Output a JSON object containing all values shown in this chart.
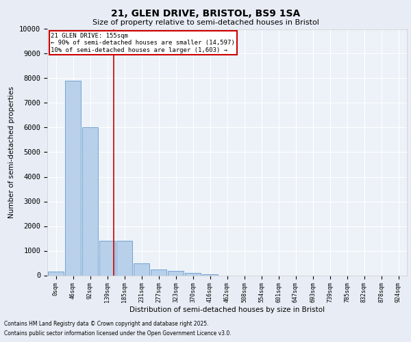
{
  "title_line1": "21, GLEN DRIVE, BRISTOL, BS9 1SA",
  "title_line2": "Size of property relative to semi-detached houses in Bristol",
  "xlabel": "Distribution of semi-detached houses by size in Bristol",
  "ylabel": "Number of semi-detached properties",
  "bar_labels": [
    "0sqm",
    "46sqm",
    "92sqm",
    "139sqm",
    "185sqm",
    "231sqm",
    "277sqm",
    "323sqm",
    "370sqm",
    "416sqm",
    "462sqm",
    "508sqm",
    "554sqm",
    "601sqm",
    "647sqm",
    "693sqm",
    "739sqm",
    "785sqm",
    "832sqm",
    "878sqm",
    "924sqm"
  ],
  "bar_values": [
    150,
    7900,
    6000,
    1400,
    1400,
    500,
    250,
    170,
    100,
    40,
    0,
    0,
    0,
    0,
    0,
    0,
    0,
    0,
    0,
    0,
    0
  ],
  "bar_color": "#b8d0ea",
  "bar_edge_color": "#6699cc",
  "vline_color": "#cc0000",
  "annotation_box_color": "#ffffff",
  "annotation_box_edge": "#cc0000",
  "property_line_label": "21 GLEN DRIVE: 155sqm",
  "annotation_smaller": "← 90% of semi-detached houses are smaller (14,597)",
  "annotation_larger": "10% of semi-detached houses are larger (1,603) →",
  "ylim": [
    0,
    10000
  ],
  "yticks": [
    0,
    1000,
    2000,
    3000,
    4000,
    5000,
    6000,
    7000,
    8000,
    9000,
    10000
  ],
  "bin_width": 46,
  "property_sqm": 155,
  "footnote1": "Contains HM Land Registry data © Crown copyright and database right 2025.",
  "footnote2": "Contains public sector information licensed under the Open Government Licence v3.0.",
  "bg_color": "#e8edf5",
  "plot_bg_color": "#edf2f8"
}
